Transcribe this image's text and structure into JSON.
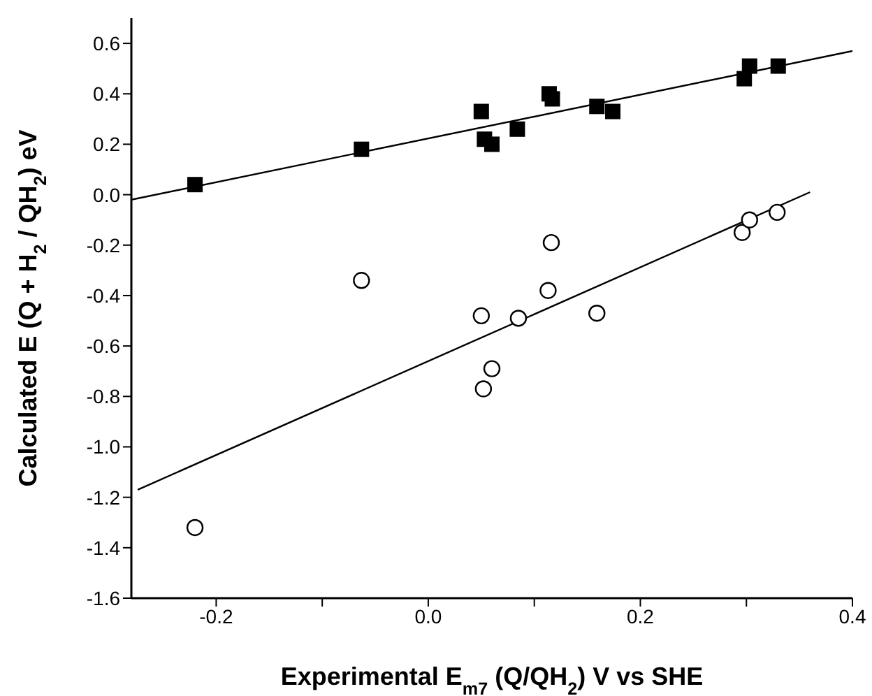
{
  "chart_data": {
    "type": "scatter",
    "xlabel": "Experimental E$_{m7}$ (Q/QH$_{2}$) V vs SHE",
    "ylabel": "Calculated E (Q + H$_{2}$ / QH$_{2}$) eV",
    "xlim": [
      -0.28,
      0.4
    ],
    "ylim": [
      -1.6,
      0.7
    ],
    "xticks": [
      {
        "value": -0.2,
        "label": "-0.2"
      },
      {
        "value": -0.1,
        "label": null
      },
      {
        "value": 0,
        "label": "0.0"
      },
      {
        "value": 0.1,
        "label": null
      },
      {
        "value": 0.2,
        "label": "0.2"
      },
      {
        "value": 0.3,
        "label": null
      },
      {
        "value": 0.4,
        "label": "0.4"
      }
    ],
    "yticks": [
      {
        "value": -1.6,
        "label": "-1.6"
      },
      {
        "value": -1.4,
        "label": "-1.4"
      },
      {
        "value": -1.2,
        "label": "-1.2"
      },
      {
        "value": -1.0,
        "label": "-1.0"
      },
      {
        "value": -0.8,
        "label": "-0.8"
      },
      {
        "value": -0.6,
        "label": "-0.6"
      },
      {
        "value": -0.4,
        "label": "-0.4"
      },
      {
        "value": -0.2,
        "label": "-0.2"
      },
      {
        "value": 0,
        "label": "0.0"
      },
      {
        "value": 0.2,
        "label": "0.2"
      },
      {
        "value": 0.4,
        "label": "0.4"
      },
      {
        "value": 0.6,
        "label": "0.6"
      }
    ],
    "grid": false,
    "legend": false,
    "series": [
      {
        "marker": "square",
        "color": "#000000",
        "x": [
          -0.22,
          -0.063,
          0.05,
          0.053,
          0.06,
          0.084,
          0.114,
          0.117,
          0.159,
          0.174,
          0.298,
          0.303,
          0.33
        ],
        "values": [
          0.04,
          0.18,
          0.33,
          0.22,
          0.2,
          0.26,
          0.4,
          0.38,
          0.35,
          0.33,
          0.46,
          0.51,
          0.51
        ]
      },
      {
        "marker": "circle",
        "color": "#000000",
        "x": [
          -0.22,
          -0.063,
          0.05,
          0.052,
          0.06,
          0.085,
          0.113,
          0.116,
          0.159,
          0.296,
          0.303,
          0.329
        ],
        "values": [
          -1.32,
          -0.34,
          -0.48,
          -0.77,
          -0.69,
          -0.49,
          -0.38,
          -0.19,
          -0.47,
          -0.15,
          -0.1,
          -0.07
        ]
      },
      {
        "type": "line",
        "color": "#000000",
        "x": [
          -0.28,
          0.4
        ],
        "values": [
          -0.02,
          0.57
        ]
      },
      {
        "type": "line",
        "color": "#000000",
        "x": [
          -0.274,
          0.36
        ],
        "values": [
          -1.17,
          0.01
        ]
      }
    ]
  }
}
